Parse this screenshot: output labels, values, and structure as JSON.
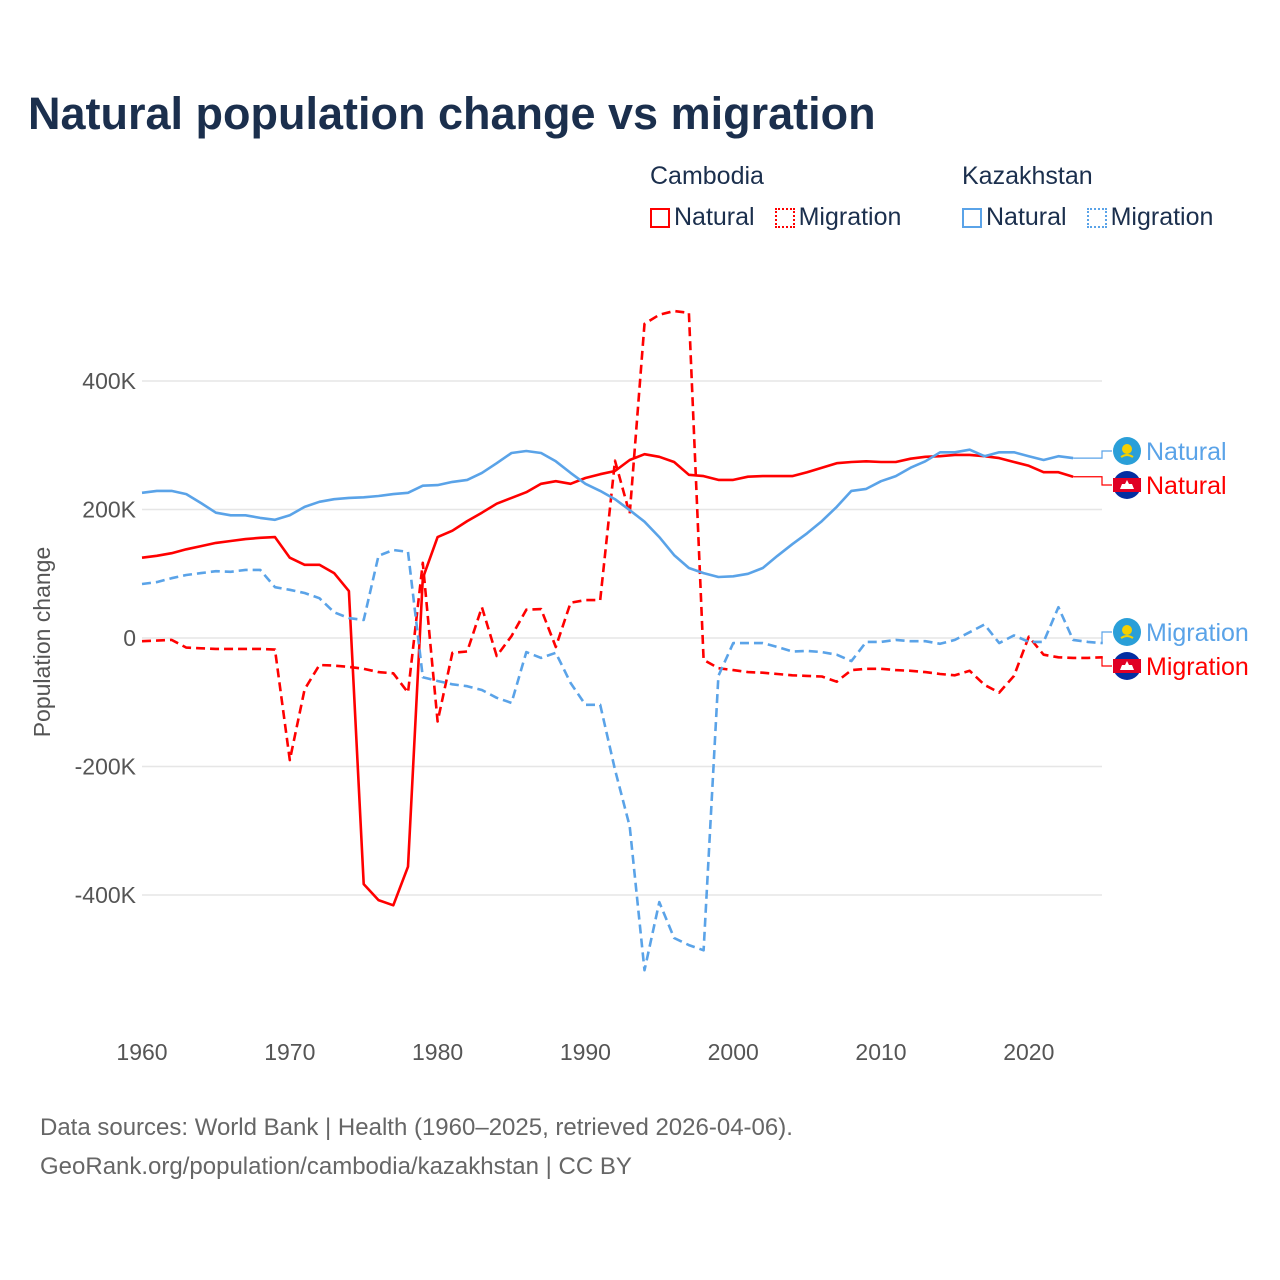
{
  "chart_data": {
    "type": "line",
    "title": "Natural population change vs migration",
    "xlabel": "",
    "ylabel": "Population change",
    "xlim": [
      1960,
      2025
    ],
    "ylim": [
      -560,
      520
    ],
    "y_unit": "thousands",
    "grid": true,
    "x_ticks": [
      {
        "v": 1960,
        "label": "1960"
      },
      {
        "v": 1970,
        "label": "1970"
      },
      {
        "v": 1980,
        "label": "1980"
      },
      {
        "v": 1990,
        "label": "1990"
      },
      {
        "v": 2000,
        "label": "2000"
      },
      {
        "v": 2010,
        "label": "2010"
      },
      {
        "v": 2020,
        "label": "2020"
      }
    ],
    "y_ticks": [
      {
        "v": 400,
        "label": "400K"
      },
      {
        "v": 200,
        "label": "200K"
      },
      {
        "v": 0,
        "label": "0"
      },
      {
        "v": -200,
        "label": "-200K"
      },
      {
        "v": -400,
        "label": "-400K"
      }
    ],
    "legend": {
      "placement": "top-right",
      "groups": [
        {
          "title": "Cambodia",
          "items": [
            "Natural",
            "Migration"
          ]
        },
        {
          "title": "Kazakhstan",
          "items": [
            "Natural",
            "Migration"
          ]
        }
      ]
    },
    "series": [
      {
        "name": "Cambodia Natural",
        "country": "Cambodia",
        "kind": "Natural",
        "end_label": "Natural",
        "color": "#ff0000",
        "dash": false,
        "start": 1960,
        "values": [
          125,
          128,
          132,
          138,
          143,
          148,
          151,
          154,
          156,
          157,
          125,
          114,
          114,
          101,
          73,
          -383,
          -408,
          -416,
          -356,
          93,
          157,
          167,
          182,
          195,
          209,
          218,
          227,
          240,
          244,
          240,
          249,
          255,
          260,
          277,
          286,
          282,
          274,
          254,
          252,
          246,
          246,
          251,
          252,
          252,
          252,
          258,
          265,
          272,
          274,
          275,
          274,
          274,
          279,
          282,
          283,
          285,
          285,
          283,
          280,
          274,
          268,
          258,
          258,
          251
        ]
      },
      {
        "name": "Cambodia Migration",
        "country": "Cambodia",
        "kind": "Migration",
        "end_label": "Migration",
        "color": "#ff0000",
        "dash": true,
        "start": 1960,
        "values": [
          -5,
          -4,
          -3,
          -15,
          -16,
          -17,
          -17,
          -17,
          -17,
          -18,
          -190,
          -80,
          -42,
          -43,
          -45,
          -48,
          -53,
          -55,
          -85,
          117,
          -130,
          -23,
          -21,
          48,
          -28,
          3,
          44,
          45,
          -14,
          55,
          59,
          59,
          276,
          193,
          489,
          503,
          509,
          506,
          -34,
          -47,
          -50,
          -53,
          -54,
          -56,
          -58,
          -59,
          -60,
          -68,
          -50,
          -48,
          -48,
          -50,
          -51,
          -53,
          -56,
          -58,
          -51,
          -73,
          -85,
          -59,
          2,
          -26,
          -30,
          -31,
          -31,
          -30
        ]
      },
      {
        "name": "Kazakhstan Natural",
        "country": "Kazakhstan",
        "kind": "Natural",
        "end_label": "Natural",
        "color": "#5aa3e8",
        "dash": false,
        "start": 1960,
        "values": [
          226,
          229,
          229,
          224,
          210,
          195,
          191,
          191,
          187,
          184,
          191,
          204,
          212,
          216,
          218,
          219,
          221,
          224,
          226,
          237,
          238,
          243,
          246,
          257,
          272,
          288,
          291,
          288,
          275,
          257,
          240,
          229,
          216,
          199,
          181,
          157,
          129,
          109,
          101,
          95,
          96,
          100,
          109,
          128,
          146,
          163,
          182,
          204,
          229,
          232,
          244,
          252,
          265,
          275,
          289,
          289,
          293,
          283,
          289,
          289,
          283,
          277,
          283,
          280
        ]
      },
      {
        "name": "Kazakhstan Migration",
        "country": "Kazakhstan",
        "kind": "Migration",
        "end_label": "Migration",
        "color": "#5aa3e8",
        "dash": true,
        "start": 1960,
        "values": [
          84,
          87,
          93,
          98,
          101,
          104,
          103,
          106,
          106,
          79,
          75,
          70,
          62,
          40,
          31,
          28,
          128,
          137,
          134,
          -61,
          -67,
          -72,
          -75,
          -81,
          -93,
          -101,
          -22,
          -31,
          -23,
          -70,
          -104,
          -104,
          -205,
          -293,
          -517,
          -411,
          -467,
          -478,
          -486,
          -59,
          -8,
          -8,
          -8,
          -14,
          -21,
          -20,
          -22,
          -26,
          -36,
          -6,
          -6,
          -3,
          -5,
          -5,
          -9,
          -3,
          9,
          21,
          -8,
          4,
          -6,
          -6,
          48,
          -3,
          -6,
          -8
        ]
      }
    ]
  },
  "footer": {
    "line1": "Data sources: World Bank | Health (1960–2025, retrieved 2026-04-06).",
    "line2": "GeoRank.org/population/cambodia/kazakhstan | CC BY"
  },
  "colors": {
    "cambodia": "#ff0000",
    "kazakhstan": "#5aa3e8",
    "title": "#1b2f4d"
  }
}
